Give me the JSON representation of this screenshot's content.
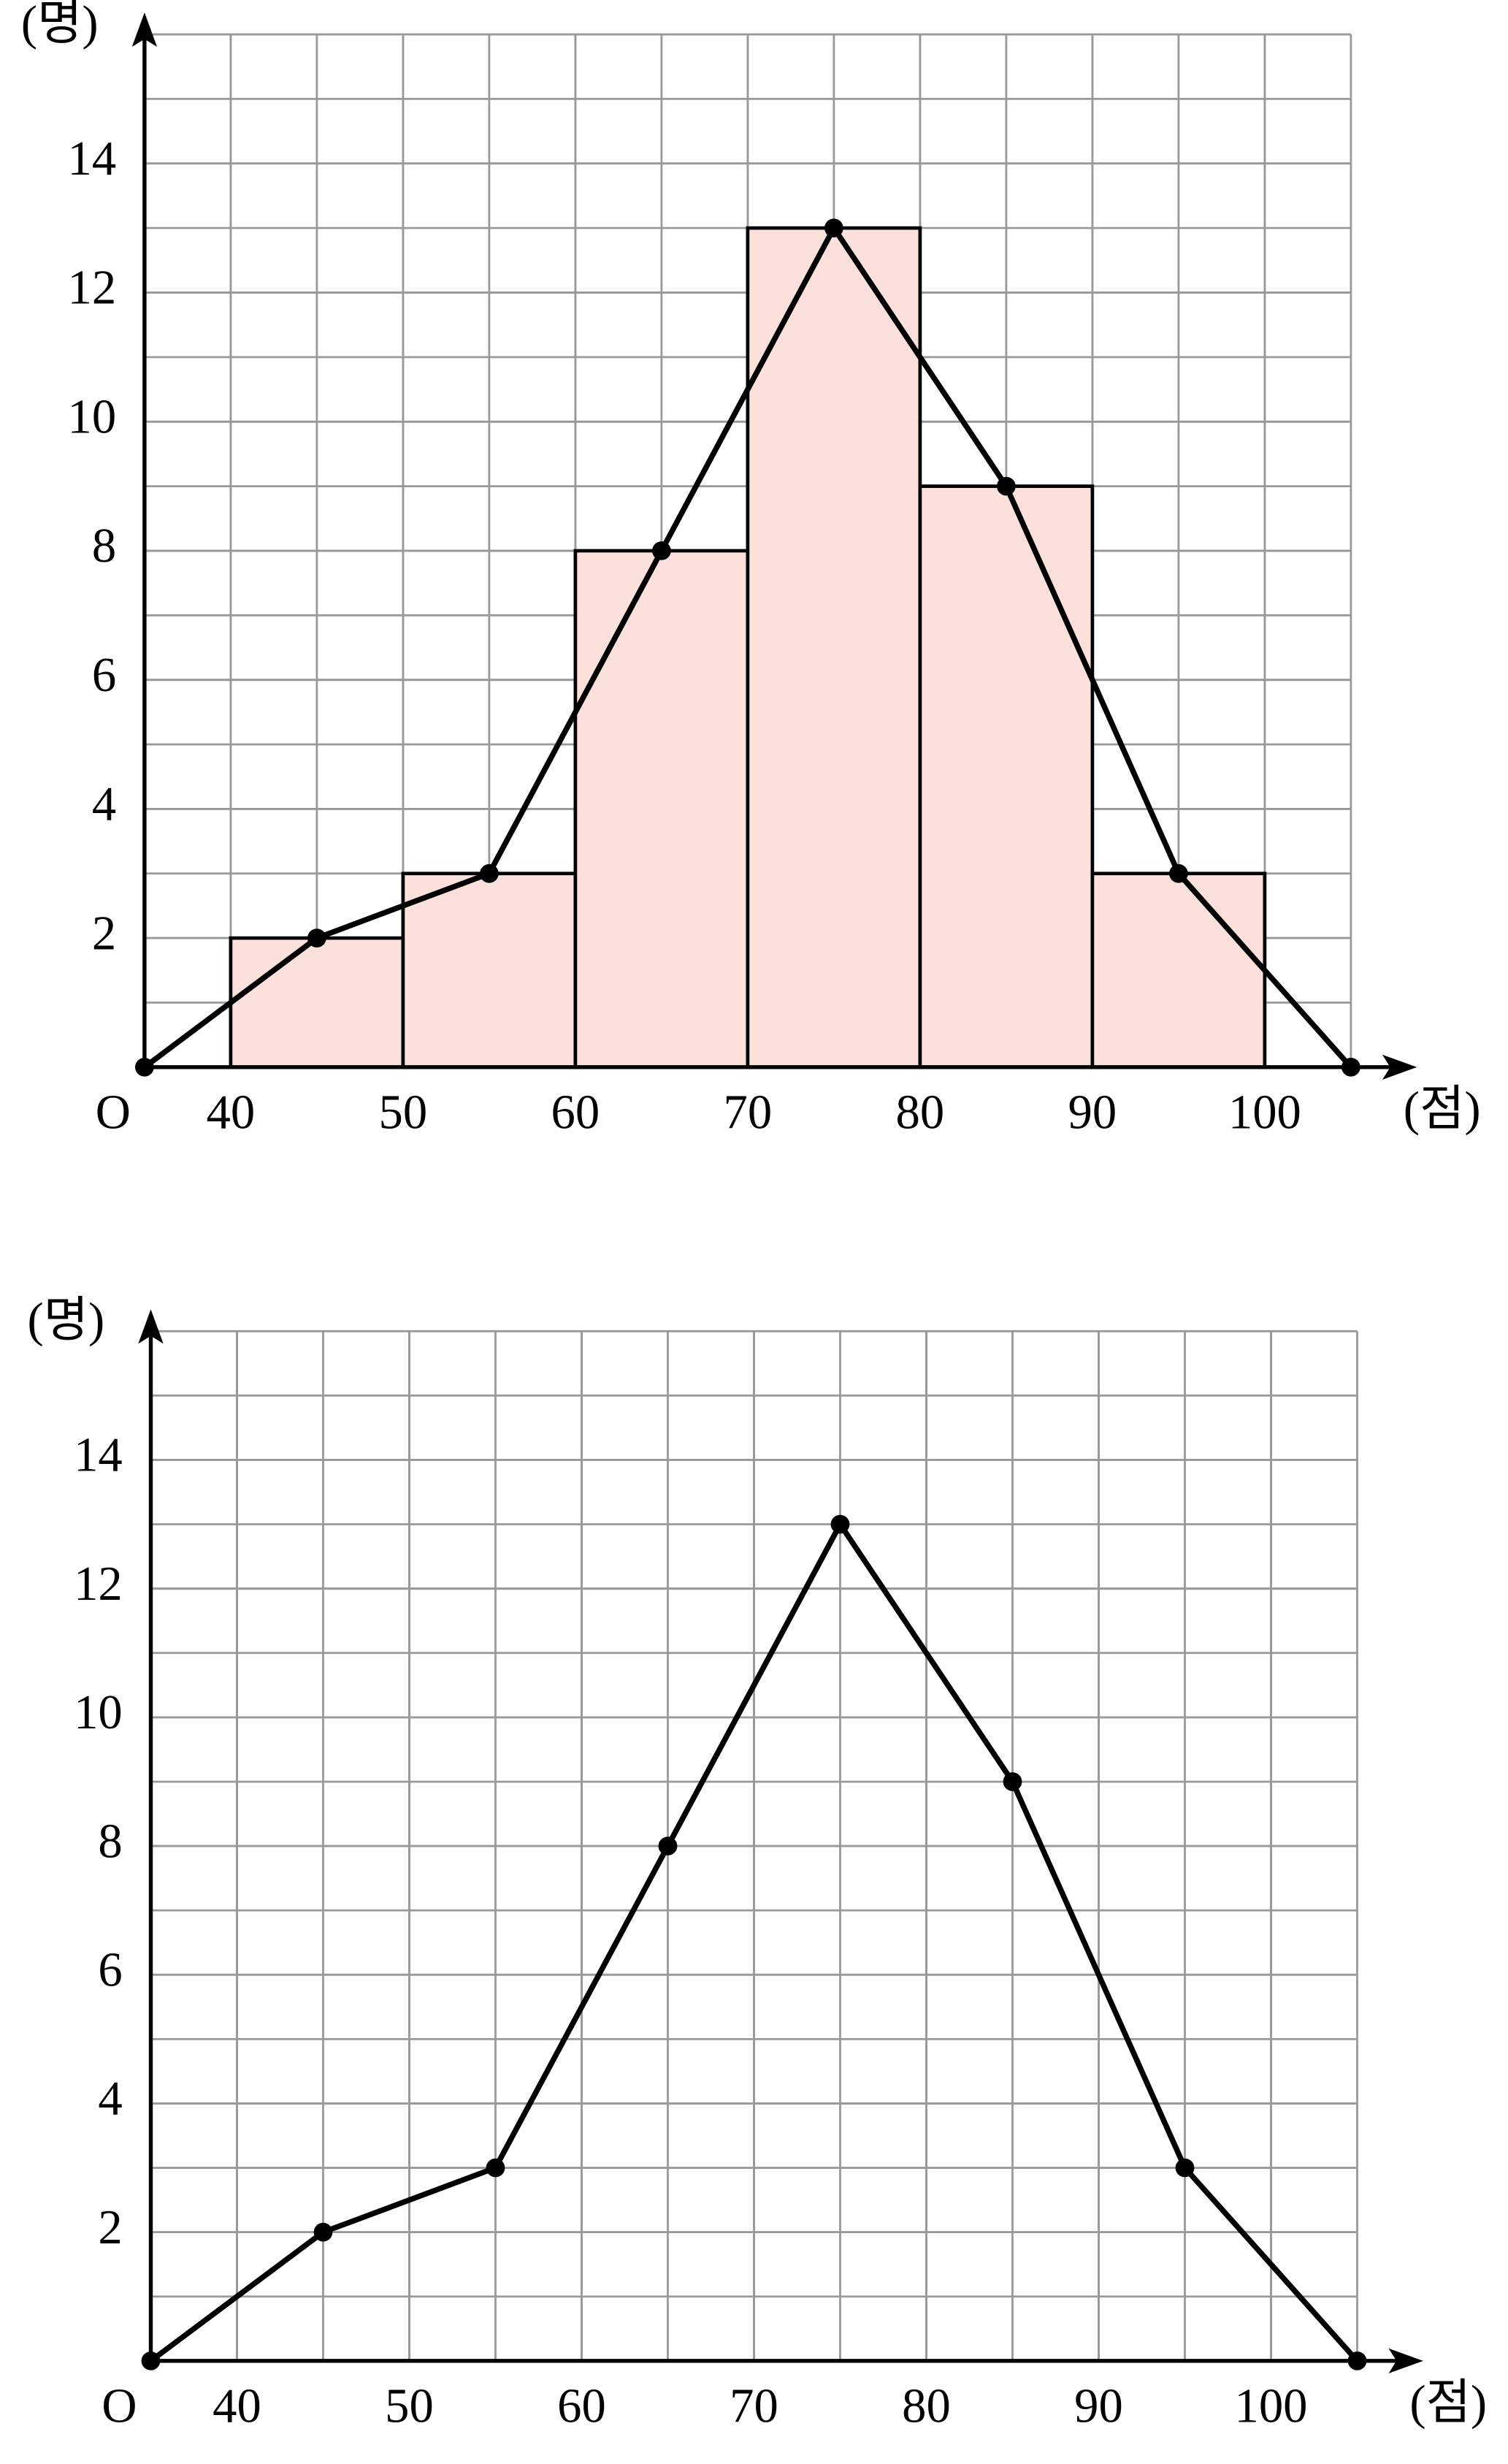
{
  "chart_data": [
    {
      "type": "histogram",
      "bins": [
        40,
        50,
        60,
        70,
        80,
        90,
        100
      ],
      "values": [
        2,
        3,
        8,
        13,
        9,
        3
      ],
      "color": "#fbe0db",
      "line": {
        "x": [
          35,
          45,
          55,
          65,
          75,
          85,
          95,
          105
        ],
        "values": [
          0,
          2,
          3,
          8,
          13,
          9,
          3,
          0
        ]
      },
      "xlim": [
        35,
        105
      ],
      "ylim": [
        0,
        16
      ],
      "xticks": [
        40,
        50,
        60,
        70,
        80,
        90,
        100
      ],
      "yticks": [
        2,
        4,
        6,
        8,
        10,
        12,
        14
      ],
      "origin_label": "O",
      "x_label": "(점)",
      "y_label": "(명)",
      "grid": true
    },
    {
      "type": "line",
      "x": [
        35,
        45,
        55,
        65,
        75,
        85,
        95,
        105
      ],
      "values": [
        0,
        2,
        3,
        8,
        13,
        9,
        3,
        0
      ],
      "color": "#000000",
      "xlim": [
        35,
        105
      ],
      "ylim": [
        0,
        16
      ],
      "xticks": [
        40,
        50,
        60,
        70,
        80,
        90,
        100
      ],
      "yticks": [
        2,
        4,
        6,
        8,
        10,
        12,
        14
      ],
      "origin_label": "O",
      "x_label": "(점)",
      "y_label": "(명)",
      "grid": true
    }
  ]
}
